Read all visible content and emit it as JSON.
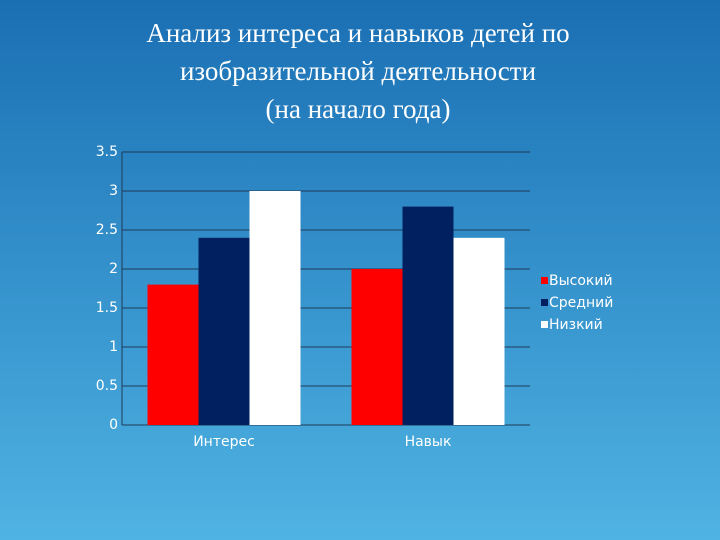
{
  "chart_data": {
    "type": "bar",
    "title": [
      "Анализ интереса и навыков детей по",
      "изобразительной деятельности",
      "(на начало года)"
    ],
    "categories": [
      "Интерес",
      "Навык"
    ],
    "series": [
      {
        "name": "Высокий",
        "color": "#ff0000",
        "values": [
          1.8,
          2
        ]
      },
      {
        "name": "Средний",
        "color": "#002060",
        "values": [
          2.4,
          2.8
        ]
      },
      {
        "name": "Низкий",
        "color": "#ffffff",
        "values": [
          3,
          2.4
        ]
      }
    ],
    "ylim": [
      0,
      3.5
    ],
    "yticks": [
      0,
      0.5,
      1,
      1.5,
      2,
      2.5,
      3,
      3.5
    ],
    "grid": true,
    "legend": "right"
  }
}
